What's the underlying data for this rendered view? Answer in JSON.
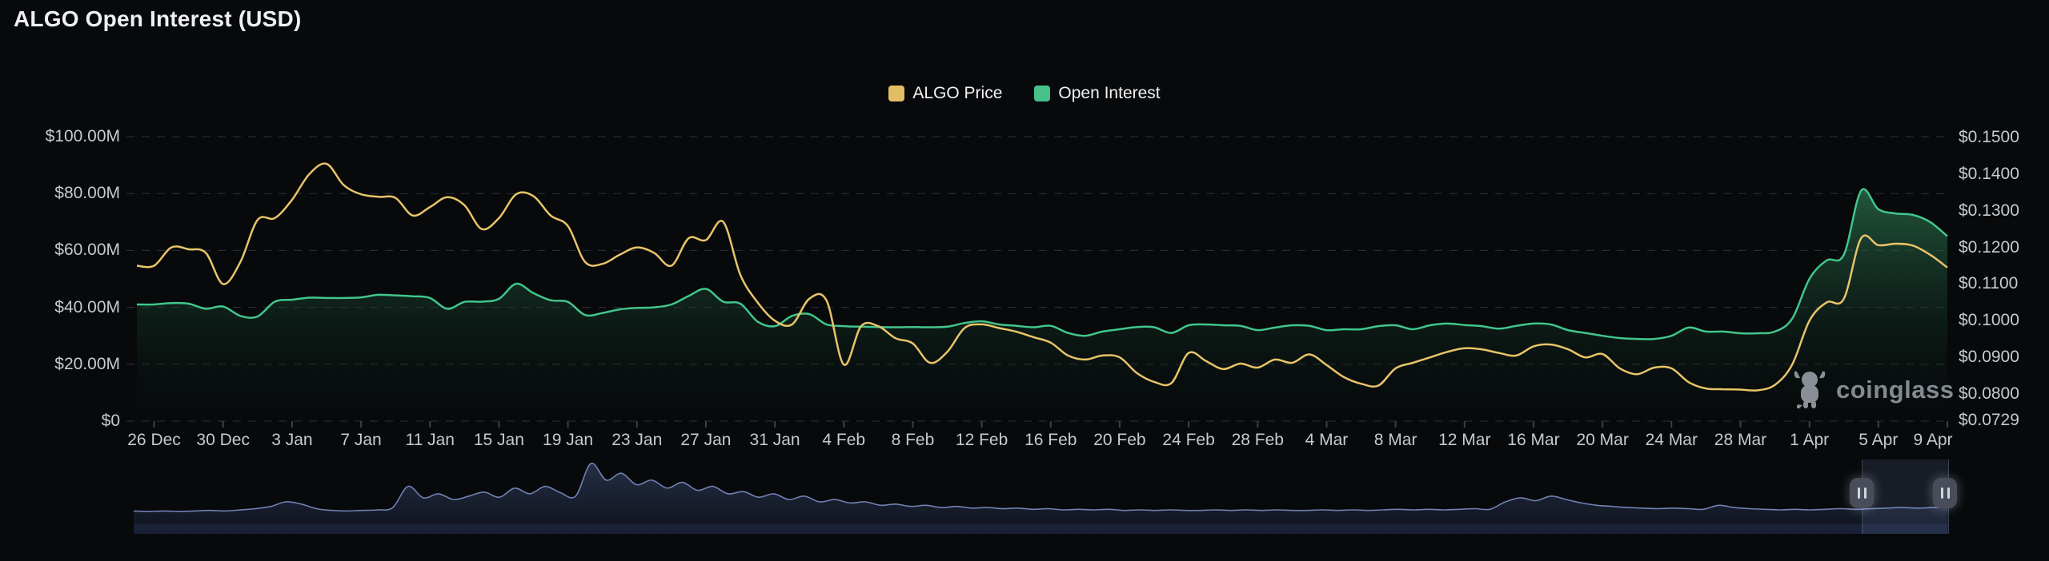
{
  "title": "ALGO Open Interest (USD)",
  "watermark": {
    "text": "coinglass",
    "icon": "coinglass-bull-icon"
  },
  "legend": [
    {
      "label": "ALGO Price",
      "color": "#e3bd64"
    },
    {
      "label": "Open Interest",
      "color": "#45c189"
    }
  ],
  "colors": {
    "background": "#07090b",
    "price_line": "#e8c468",
    "oi_line": "#41c68c",
    "oi_fill_top": "#3a9666",
    "grid": "#2e3238",
    "axis_text": "#c6cacf",
    "navigator_line": "#7181b2",
    "navigator_fill": "#232f55",
    "handle": "#484d59"
  },
  "chart_data": {
    "type": "area",
    "title": "ALGO Open Interest (USD)",
    "x_tick_labels": [
      "26 Dec",
      "30 Dec",
      "3 Jan",
      "7 Jan",
      "11 Jan",
      "15 Jan",
      "19 Jan",
      "23 Jan",
      "27 Jan",
      "31 Jan",
      "4 Feb",
      "8 Feb",
      "12 Feb",
      "16 Feb",
      "20 Feb",
      "24 Feb",
      "28 Feb",
      "4 Mar",
      "8 Mar",
      "12 Mar",
      "16 Mar",
      "20 Mar",
      "24 Mar",
      "28 Mar",
      "1 Apr",
      "5 Apr",
      "9 Apr"
    ],
    "x_tick_days": [
      0,
      4,
      8,
      12,
      16,
      20,
      24,
      28,
      32,
      36,
      40,
      44,
      48,
      52,
      56,
      60,
      64,
      68,
      72,
      76,
      80,
      84,
      88,
      92,
      96,
      100,
      104
    ],
    "x_range": [
      "26 Dec",
      "9 Apr"
    ],
    "grid": "dashed-horizontal",
    "legend_position": "top-center",
    "left_axis": {
      "ticks": [
        {
          "label": "$100.00M",
          "value": 100
        },
        {
          "label": "$80.00M",
          "value": 80
        },
        {
          "label": "$60.00M",
          "value": 60
        },
        {
          "label": "$40.00M",
          "value": 40
        },
        {
          "label": "$20.00M",
          "value": 20
        },
        {
          "label": "$0",
          "value": 0
        }
      ],
      "range": [
        0,
        100
      ],
      "unit": "USD millions"
    },
    "right_axis": {
      "ticks": [
        {
          "label": "$0.1500",
          "value": 0.15
        },
        {
          "label": "$0.1400",
          "value": 0.14
        },
        {
          "label": "$0.1300",
          "value": 0.13
        },
        {
          "label": "$0.1200",
          "value": 0.12
        },
        {
          "label": "$0.1100",
          "value": 0.11
        },
        {
          "label": "$0.1000",
          "value": 0.1
        },
        {
          "label": "$0.0900",
          "value": 0.09
        },
        {
          "label": "$0.0800",
          "value": 0.08
        },
        {
          "label": "$0.0729",
          "value": 0.0729
        }
      ],
      "range": [
        0.0729,
        0.15
      ],
      "unit": "USD"
    },
    "series": [
      {
        "name": "Open Interest",
        "type": "area",
        "axis": "left",
        "color": "#41c68c",
        "values": [
          41.0,
          41.5,
          41.3,
          39.5,
          40.3,
          37.0,
          36.8,
          42.0,
          42.7,
          43.4,
          43.3,
          43.3,
          43.5,
          44.4,
          44.2,
          43.9,
          43.3,
          39.5,
          41.9,
          42.0,
          43.0,
          48.3,
          45.0,
          42.5,
          41.9,
          37.3,
          38.0,
          39.3,
          39.8,
          40.0,
          41.0,
          44.0,
          46.5,
          42.0,
          41.3,
          35.0,
          33.4,
          37.0,
          37.6,
          34.0,
          33.4,
          33.2,
          33.1,
          33.0,
          33.1,
          33.0,
          33.2,
          34.5,
          35.1,
          34.0,
          33.5,
          33.0,
          33.5,
          31.0,
          30.0,
          31.5,
          32.3,
          33.1,
          33.0,
          31.0,
          33.7,
          34.0,
          33.7,
          33.5,
          32.0,
          32.9,
          33.7,
          33.5,
          32.0,
          32.3,
          32.3,
          33.4,
          33.7,
          32.3,
          33.7,
          34.3,
          33.8,
          33.4,
          32.5,
          33.5,
          34.3,
          34.0,
          32.0,
          31.0,
          30.0,
          29.2,
          28.9,
          28.9,
          30.0,
          32.9,
          31.5,
          31.5,
          30.9,
          30.9,
          31.5,
          36.0,
          50.0,
          56.5,
          58.5,
          81.0,
          74.5,
          73.0,
          72.5,
          70.0,
          65.0
        ]
      },
      {
        "name": "ALGO Price",
        "type": "line",
        "axis": "right",
        "color": "#e8c468",
        "values": [
          0.115,
          0.12,
          0.1195,
          0.1185,
          0.11,
          0.116,
          0.1275,
          0.128,
          0.133,
          0.14,
          0.1428,
          0.137,
          0.1345,
          0.1338,
          0.1335,
          0.1287,
          0.131,
          0.1337,
          0.1315,
          0.125,
          0.128,
          0.1345,
          0.134,
          0.1287,
          0.1258,
          0.116,
          0.1155,
          0.118,
          0.12,
          0.1185,
          0.115,
          0.1225,
          0.122,
          0.127,
          0.1125,
          0.105,
          0.1,
          0.099,
          0.106,
          0.1055,
          0.088,
          0.0985,
          0.0985,
          0.0952,
          0.0938,
          0.0885,
          0.0915,
          0.098,
          0.099,
          0.098,
          0.097,
          0.0955,
          0.094,
          0.0905,
          0.0894,
          0.0905,
          0.09,
          0.0857,
          0.0833,
          0.083,
          0.0912,
          0.089,
          0.0868,
          0.0883,
          0.0872,
          0.0894,
          0.0885,
          0.0908,
          0.0879,
          0.0846,
          0.0828,
          0.0823,
          0.087,
          0.0885,
          0.09,
          0.0915,
          0.0925,
          0.0922,
          0.0912,
          0.0905,
          0.093,
          0.0935,
          0.0922,
          0.09,
          0.0909,
          0.087,
          0.0854,
          0.0872,
          0.087,
          0.0832,
          0.0815,
          0.0813,
          0.0812,
          0.081,
          0.0825,
          0.088,
          0.1,
          0.105,
          0.106,
          0.1225,
          0.1206,
          0.121,
          0.1205,
          0.118,
          0.1145
        ]
      }
    ],
    "navigator": {
      "description": "full-history minimap with range selector at right end",
      "values": [
        0.12,
        0.11,
        0.12,
        0.11,
        0.12,
        0.13,
        0.12,
        0.14,
        0.16,
        0.2,
        0.28,
        0.24,
        0.16,
        0.13,
        0.12,
        0.13,
        0.14,
        0.18,
        0.55,
        0.35,
        0.42,
        0.32,
        0.38,
        0.45,
        0.36,
        0.52,
        0.42,
        0.55,
        0.44,
        0.38,
        0.95,
        0.66,
        0.78,
        0.58,
        0.66,
        0.52,
        0.62,
        0.48,
        0.55,
        0.42,
        0.46,
        0.36,
        0.42,
        0.32,
        0.38,
        0.28,
        0.32,
        0.26,
        0.28,
        0.22,
        0.24,
        0.2,
        0.22,
        0.18,
        0.2,
        0.17,
        0.18,
        0.16,
        0.17,
        0.15,
        0.16,
        0.14,
        0.15,
        0.14,
        0.15,
        0.13,
        0.14,
        0.13,
        0.14,
        0.13,
        0.13,
        0.14,
        0.13,
        0.14,
        0.13,
        0.14,
        0.13,
        0.13,
        0.14,
        0.13,
        0.14,
        0.13,
        0.14,
        0.15,
        0.14,
        0.15,
        0.14,
        0.15,
        0.16,
        0.15,
        0.28,
        0.35,
        0.3,
        0.38,
        0.32,
        0.26,
        0.22,
        0.2,
        0.18,
        0.17,
        0.16,
        0.17,
        0.16,
        0.15,
        0.22,
        0.18,
        0.16,
        0.15,
        0.14,
        0.15,
        0.14,
        0.15,
        0.16,
        0.15,
        0.16,
        0.17,
        0.18,
        0.17,
        0.18,
        0.19
      ],
      "selection": [
        0.953,
        1.0
      ]
    }
  }
}
